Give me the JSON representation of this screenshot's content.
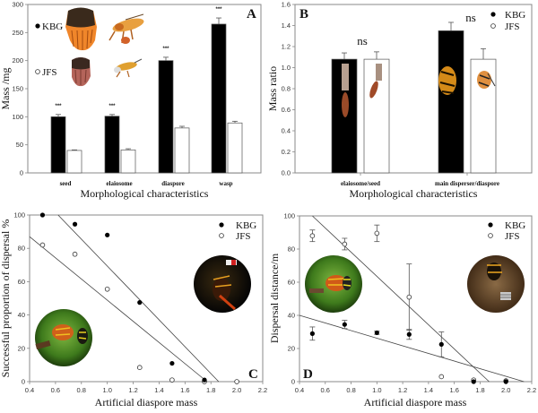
{
  "colors": {
    "kbg": "#000000",
    "jfs": "#ffffff",
    "frame": "#888888",
    "line": "#444444"
  },
  "chart_data": [
    {
      "id": "A",
      "type": "bar",
      "panel_label": "A",
      "xlabel": "Morphological characteristics",
      "ylabel": "Mass /mg",
      "ylim": [
        0,
        300
      ],
      "yticks": [
        "0",
        "50",
        "100",
        "150",
        "200",
        "250",
        "300"
      ],
      "categories": [
        "seed",
        "elaiosome",
        "diaspore",
        "wasp"
      ],
      "series": [
        {
          "name": "KBG",
          "values": [
            100,
            101,
            200,
            265
          ],
          "errors": [
            4,
            3,
            6,
            11
          ]
        },
        {
          "name": "JFS",
          "values": [
            40,
            41,
            80,
            89
          ],
          "errors": [
            1,
            2,
            3,
            3
          ]
        }
      ],
      "annotations": [
        "***",
        "***",
        "***",
        "***"
      ],
      "legend": [
        "KBG",
        "JFS"
      ],
      "legend_position": "top-left"
    },
    {
      "id": "B",
      "type": "bar",
      "panel_label": "B",
      "xlabel": "Morphological characteristics",
      "ylabel": "Mass ratio",
      "ylim": [
        0,
        1.6
      ],
      "yticks": [
        "0.0",
        "0.2",
        "0.4",
        "0.6",
        "0.8",
        "1.0",
        "1.2",
        "1.4",
        "1.6"
      ],
      "categories": [
        "elaiosome/seed",
        "main disperser/diaspore"
      ],
      "series": [
        {
          "name": "KBG",
          "values": [
            1.08,
            1.35
          ],
          "errors": [
            0.06,
            0.08
          ]
        },
        {
          "name": "JFS",
          "values": [
            1.08,
            1.08
          ],
          "errors": [
            0.07,
            0.1
          ]
        }
      ],
      "annotations": [
        "ns",
        "ns"
      ],
      "legend": [
        "KBG",
        "JFS"
      ],
      "legend_position": "top-right"
    },
    {
      "id": "C",
      "type": "scatter",
      "panel_label": "C",
      "xlabel": "Artificial diaspore mass",
      "ylabel": "Successful proportion of dispersal %",
      "xlim": [
        0.4,
        2.2
      ],
      "ylim": [
        0,
        100
      ],
      "xticks": [
        "0.4",
        "0.6",
        "0.8",
        "1.0",
        "1.2",
        "1.4",
        "1.6",
        "1.8",
        "2.0",
        "2.2"
      ],
      "yticks": [
        "0",
        "20",
        "40",
        "60",
        "80",
        "100"
      ],
      "series": [
        {
          "name": "KBG",
          "x": [
            0.5,
            0.75,
            1.0,
            1.25,
            1.5,
            1.75
          ],
          "y": [
            100,
            94.5,
            88,
            47.5,
            11,
            1
          ]
        },
        {
          "name": "JFS",
          "x": [
            0.5,
            0.75,
            1.0,
            1.25,
            1.5,
            1.75,
            2.0
          ],
          "y": [
            82,
            76.5,
            55.5,
            8.5,
            1,
            0,
            0
          ]
        }
      ],
      "fit_lines": [
        {
          "name": "KBG",
          "x": [
            0.62,
            1.86
          ],
          "y": [
            100,
            0
          ]
        },
        {
          "name": "JFS",
          "x": [
            0.4,
            1.77
          ],
          "y": [
            87,
            0
          ]
        }
      ],
      "legend": [
        "KBG",
        "JFS"
      ],
      "legend_position": "top-right"
    },
    {
      "id": "D",
      "type": "scatter",
      "panel_label": "D",
      "xlabel": "Artificial diaspore mass",
      "ylabel": "Dispersal distance/m",
      "xlim": [
        0.4,
        2.2
      ],
      "ylim": [
        0,
        100
      ],
      "xticks": [
        "0.4",
        "0.6",
        "0.8",
        "1.0",
        "1.2",
        "1.4",
        "1.6",
        "1.8",
        "2.0",
        "2.2"
      ],
      "yticks": [
        "0",
        "20",
        "40",
        "60",
        "80",
        "100"
      ],
      "series": [
        {
          "name": "KBG",
          "x": [
            0.5,
            0.75,
            1.0,
            1.25,
            1.5,
            1.75,
            2.0
          ],
          "y": [
            29,
            34.5,
            29.5,
            28.5,
            22.5,
            0,
            0
          ],
          "errors": [
            4,
            2.5,
            1,
            3,
            7.5,
            0,
            0
          ]
        },
        {
          "name": "JFS",
          "x": [
            0.5,
            0.75,
            1.0,
            1.25,
            1.5,
            1.75,
            2.0
          ],
          "y": [
            88,
            83,
            89.5,
            51,
            3,
            1,
            0.5
          ],
          "errors": [
            3.5,
            3.5,
            5,
            20,
            0,
            0,
            0
          ]
        }
      ],
      "fit_lines": [
        {
          "name": "JFS",
          "x": [
            0.5,
            1.87
          ],
          "y": [
            100,
            0
          ]
        },
        {
          "name": "KBG",
          "x": [
            0.4,
            2.14
          ],
          "y": [
            40,
            0
          ]
        }
      ],
      "legend": [
        "KBG",
        "JFS"
      ],
      "legend_position": "top-right"
    }
  ]
}
